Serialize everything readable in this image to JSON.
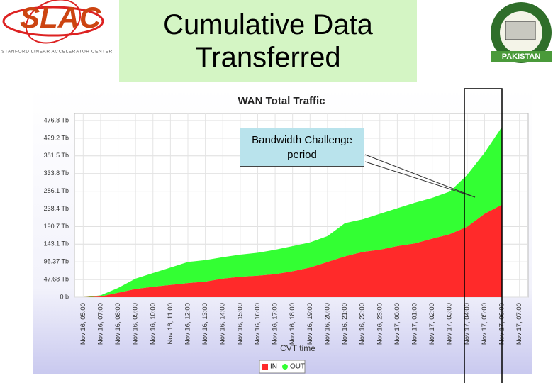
{
  "header": {
    "logo_left": {
      "name": "SLAC",
      "subtitle": "STANFORD LINEAR ACCELERATOR CENTER"
    },
    "title": "Cumulative Data Transferred",
    "logo_right": "PAKISTAN"
  },
  "chart_data": {
    "type": "area",
    "stacked": true,
    "title": "WAN Total Traffic",
    "x_label": "CVT time",
    "categories": [
      "Nov 16, 05:00",
      "Nov 16, 07:00",
      "Nov 16, 08:00",
      "Nov 16, 09:00",
      "Nov 16, 10:00",
      "Nov 16, 11:00",
      "Nov 16, 12:00",
      "Nov 16, 13:00",
      "Nov 16, 14:00",
      "Nov 16, 15:00",
      "Nov 16, 16:00",
      "Nov 16, 17:00",
      "Nov 16, 18:00",
      "Nov 16, 19:00",
      "Nov 16, 20:00",
      "Nov 16, 21:00",
      "Nov 16, 22:00",
      "Nov 16, 23:00",
      "Nov 17, 00:00",
      "Nov 17, 01:00",
      "Nov 17, 02:00",
      "Nov 17, 03:00",
      "Nov 17, 04:00",
      "Nov 17, 05:00",
      "Nov 17, 06:00",
      "Nov 17, 07:00"
    ],
    "series": [
      {
        "name": "IN",
        "color": "#ff2a2a",
        "values": [
          0,
          2,
          12,
          22,
          28,
          33,
          38,
          42,
          50,
          55,
          58,
          62,
          70,
          80,
          95,
          110,
          122,
          128,
          138,
          145,
          158,
          170,
          190,
          225,
          250,
          null
        ]
      },
      {
        "name": "OUT",
        "color": "#33ff33",
        "values": [
          0,
          3,
          13,
          28,
          37,
          47,
          57,
          58,
          58,
          60,
          62,
          66,
          68,
          68,
          70,
          90,
          88,
          97,
          102,
          110,
          110,
          115,
          140,
          165,
          210,
          null
        ]
      }
    ],
    "ylim": [
      0,
      496
    ],
    "yticks": [
      {
        "value": 0,
        "label": "0 b"
      },
      {
        "value": 47.68,
        "label": "47.68 Tb"
      },
      {
        "value": 95.37,
        "label": "95.37 Tb"
      },
      {
        "value": 143.1,
        "label": "143.1 Tb"
      },
      {
        "value": 190.7,
        "label": "190.7 Tb"
      },
      {
        "value": 238.4,
        "label": "238.4 Tb"
      },
      {
        "value": 286.1,
        "label": "286.1 Tb"
      },
      {
        "value": 333.8,
        "label": "333.8 Tb"
      },
      {
        "value": 381.5,
        "label": "381.5 Tb"
      },
      {
        "value": 429.2,
        "label": "429.2 Tb"
      },
      {
        "value": 476.8,
        "label": "476.8 Tb"
      }
    ],
    "grid": true,
    "annotation": "Bandwidth Challenge period"
  }
}
